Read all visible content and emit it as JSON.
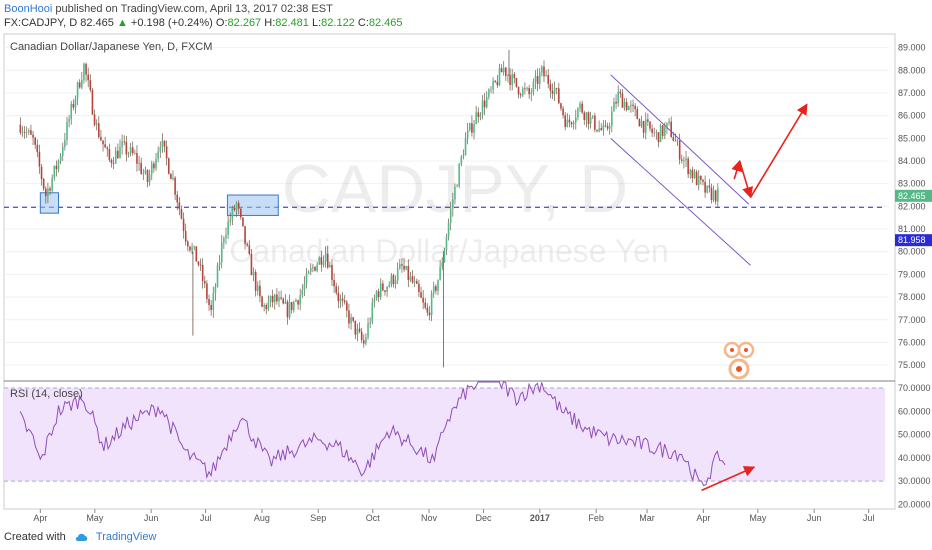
{
  "header": {
    "author": "BoonHooi",
    "published_text": "published on TradingView.com, April 13, 2017 02:38 EST",
    "symbol": "FX:CADJPY, D",
    "last": "82.465",
    "change": "+0.198 (+0.24%)",
    "o_label": "O:",
    "o_value": "82.267",
    "h_label": "H:",
    "h_value": "82.481",
    "l_label": "L:",
    "l_value": "82.122",
    "c_label": "C:",
    "c_value": "82.465"
  },
  "footer": {
    "created_with": "Created with",
    "brand": "TradingView"
  },
  "chart_data": [
    {
      "type": "candlestick",
      "title": "Canadian Dollar/Japanese Yen, D, FXCM",
      "watermark_symbol": "CADJPY, D",
      "watermark_name": "Canadian Dollar/Japanese Yen",
      "ylim": [
        74.3,
        89.6
      ],
      "y_ticks": [
        "75.000",
        "76.000",
        "77.000",
        "78.000",
        "79.000",
        "80.000",
        "81.000",
        "82.000",
        "83.000",
        "84.000",
        "85.000",
        "86.000",
        "87.000",
        "88.000",
        "89.000"
      ],
      "x_ticks": [
        "Apr",
        "May",
        "Jun",
        "Jul",
        "Aug",
        "Sep",
        "Oct",
        "Nov",
        "Dec",
        "2017",
        "Feb",
        "Mar",
        "Apr",
        "May",
        "Jun",
        "Jul"
      ],
      "close_path": [
        [
          "2016-03-21",
          85.6
        ],
        [
          "2016-03-28",
          84.9
        ],
        [
          "2016-04-04",
          82.5
        ],
        [
          "2016-04-11",
          84.0
        ],
        [
          "2016-04-18",
          86.2
        ],
        [
          "2016-04-25",
          88.2
        ],
        [
          "2016-05-02",
          85.5
        ],
        [
          "2016-05-09",
          84.0
        ],
        [
          "2016-05-16",
          84.6
        ],
        [
          "2016-05-23",
          84.2
        ],
        [
          "2016-05-30",
          83.1
        ],
        [
          "2016-06-06",
          84.9
        ],
        [
          "2016-06-13",
          83.2
        ],
        [
          "2016-06-20",
          80.7
        ],
        [
          "2016-06-27",
          79.5
        ],
        [
          "2016-07-04",
          77.3
        ],
        [
          "2016-07-11",
          80.8
        ],
        [
          "2016-07-18",
          82.1
        ],
        [
          "2016-07-25",
          79.6
        ],
        [
          "2016-08-01",
          77.5
        ],
        [
          "2016-08-08",
          77.9
        ],
        [
          "2016-08-15",
          77.4
        ],
        [
          "2016-08-22",
          78.1
        ],
        [
          "2016-08-29",
          79.3
        ],
        [
          "2016-09-05",
          80.0
        ],
        [
          "2016-09-12",
          78.0
        ],
        [
          "2016-09-19",
          76.9
        ],
        [
          "2016-09-26",
          75.9
        ],
        [
          "2016-10-03",
          78.2
        ],
        [
          "2016-10-10",
          78.6
        ],
        [
          "2016-10-17",
          79.3
        ],
        [
          "2016-10-24",
          78.5
        ],
        [
          "2016-10-31",
          77.2
        ],
        [
          "2016-11-07",
          79.1
        ],
        [
          "2016-11-14",
          82.3
        ],
        [
          "2016-11-21",
          84.9
        ],
        [
          "2016-11-28",
          86.2
        ],
        [
          "2016-12-05",
          87.0
        ],
        [
          "2016-12-12",
          88.1
        ],
        [
          "2016-12-19",
          87.3
        ],
        [
          "2016-12-26",
          86.9
        ],
        [
          "2017-01-02",
          87.9
        ],
        [
          "2017-01-09",
          87.2
        ],
        [
          "2017-01-16",
          85.6
        ],
        [
          "2017-01-23",
          86.4
        ],
        [
          "2017-01-30",
          85.7
        ],
        [
          "2017-02-06",
          85.2
        ],
        [
          "2017-02-13",
          86.9
        ],
        [
          "2017-02-20",
          86.3
        ],
        [
          "2017-02-27",
          85.6
        ],
        [
          "2017-03-06",
          85.1
        ],
        [
          "2017-03-13",
          85.5
        ],
        [
          "2017-03-20",
          84.2
        ],
        [
          "2017-03-27",
          83.3
        ],
        [
          "2017-04-03",
          82.6
        ],
        [
          "2017-04-10",
          82.465
        ]
      ],
      "spikes": [
        [
          "2016-06-24",
          76.3
        ],
        [
          "2016-11-09",
          74.9
        ],
        [
          "2016-12-15",
          88.9
        ]
      ],
      "last_price_label": "82.465",
      "support_level": 81.958,
      "support_label": "81.958",
      "highlight_boxes": [
        {
          "x0": "2016-04-01",
          "x1": "2016-04-11",
          "y0": 81.7,
          "y1": 82.6
        },
        {
          "x0": "2016-07-13",
          "x1": "2016-08-10",
          "y0": 81.6,
          "y1": 82.5
        }
      ],
      "channel": {
        "upper": [
          [
            "2017-02-09",
            87.8
          ],
          [
            "2017-04-26",
            82.1
          ]
        ],
        "lower": [
          [
            "2017-02-09",
            85.0
          ],
          [
            "2017-04-27",
            79.4
          ]
        ]
      },
      "arrows": [
        [
          [
            "2017-04-18",
            83.2
          ],
          [
            "2017-04-21",
            84.0
          ]
        ],
        [
          [
            "2017-04-21",
            84.0
          ],
          [
            "2017-04-27",
            82.4
          ]
        ],
        [
          [
            "2017-04-27",
            82.4
          ],
          [
            "2017-05-28",
            86.5
          ]
        ]
      ]
    },
    {
      "type": "line",
      "title": "RSI (14, close)",
      "ylim": [
        18,
        73
      ],
      "y_ticks": [
        "20.0000",
        "30.0000",
        "40.0000",
        "50.0000",
        "60.0000",
        "70.0000"
      ],
      "band": [
        30,
        70
      ],
      "series": [
        {
          "points": [
            [
              "2016-03-21",
              57
            ],
            [
              "2016-03-28",
              48
            ],
            [
              "2016-04-01",
              38
            ],
            [
              "2016-04-11",
              60
            ],
            [
              "2016-04-25",
              66
            ],
            [
              "2016-05-06",
              45
            ],
            [
              "2016-05-20",
              55
            ],
            [
              "2016-06-06",
              62
            ],
            [
              "2016-06-20",
              42
            ],
            [
              "2016-07-04",
              33
            ],
            [
              "2016-07-20",
              58
            ],
            [
              "2016-08-05",
              38
            ],
            [
              "2016-08-20",
              44
            ],
            [
              "2016-09-01",
              48
            ],
            [
              "2016-09-12",
              45
            ],
            [
              "2016-09-26",
              34
            ],
            [
              "2016-10-10",
              52
            ],
            [
              "2016-10-24",
              45
            ],
            [
              "2016-11-04",
              38
            ],
            [
              "2016-11-10",
              55
            ],
            [
              "2016-11-21",
              68
            ],
            [
              "2016-12-05",
              76
            ],
            [
              "2016-12-19",
              66
            ],
            [
              "2017-01-02",
              72
            ],
            [
              "2017-01-13",
              60
            ],
            [
              "2017-01-27",
              52
            ],
            [
              "2017-02-08",
              48
            ],
            [
              "2017-02-20",
              47
            ],
            [
              "2017-03-06",
              44
            ],
            [
              "2017-03-20",
              42
            ],
            [
              "2017-03-31",
              27
            ],
            [
              "2017-04-06",
              36
            ],
            [
              "2017-04-10",
              41
            ],
            [
              "2017-04-13",
              37
            ]
          ]
        }
      ],
      "arrow": [
        [
          "2017-03-31",
          26
        ],
        [
          "2017-04-29",
          36
        ]
      ]
    }
  ]
}
